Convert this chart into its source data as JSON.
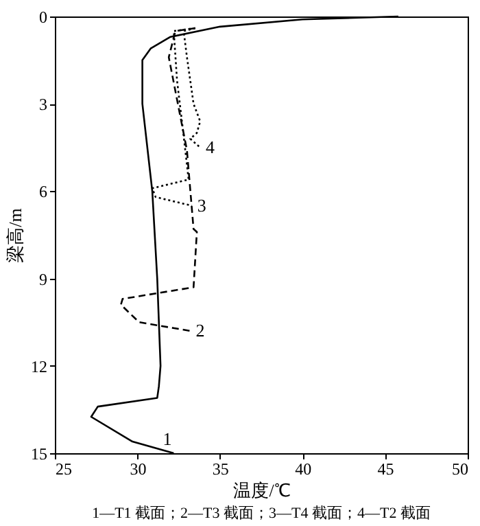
{
  "chart_data": {
    "type": "line",
    "xlabel": "温度/℃",
    "ylabel": "梁高/m",
    "xlim": [
      25,
      50
    ],
    "xticks": [
      25,
      30,
      35,
      40,
      45,
      50
    ],
    "ylim": [
      15,
      0
    ],
    "yticks": [
      0,
      3,
      6,
      9,
      12,
      15
    ],
    "series": [
      {
        "name": "1",
        "color": "#000000",
        "line_style": "solid",
        "x": [
          45.8,
          40,
          35,
          32,
          30.8,
          30.3,
          30.3,
          30.9,
          31.2,
          31.4,
          31.3,
          31.2,
          27.6,
          27.2,
          29.7,
          32.2
        ],
        "values": [
          0,
          0.1,
          0.35,
          0.7,
          1.1,
          1.5,
          3,
          6,
          9,
          12,
          12.7,
          13.1,
          13.4,
          13.75,
          14.6,
          15
        ]
      },
      {
        "name": "2",
        "color": "#000000",
        "line_style": "dashed",
        "x": [
          33.5,
          32.3,
          31.9,
          33.0,
          33.4,
          33.6,
          33.4,
          29.1,
          29.0,
          30.1,
          33.2
        ],
        "values": [
          0.4,
          0.5,
          1.4,
          4.6,
          7.3,
          7.4,
          9.3,
          9.7,
          9.9,
          10.5,
          10.8
        ]
      },
      {
        "name": "3",
        "color": "#000000",
        "line_style": "dotted",
        "x": [
          33.5,
          32.2,
          32.4,
          32.8,
          33.1,
          30.9,
          31.1,
          33.3
        ],
        "values": [
          0.4,
          0.5,
          2.2,
          4.1,
          5.6,
          5.9,
          6.2,
          6.5
        ]
      },
      {
        "name": "4",
        "color": "#000000",
        "line_style": "dotted",
        "x": [
          33.5,
          32.8,
          33.0,
          33.4,
          33.8,
          33.6,
          33.2,
          33.8
        ],
        "values": [
          0.4,
          0.5,
          1.4,
          3.0,
          3.6,
          4.0,
          4.2,
          4.5
        ]
      }
    ],
    "annotations": [
      "1—T1 截面；2—T3 截面；3—T4 截面；4—T2 截面"
    ]
  }
}
